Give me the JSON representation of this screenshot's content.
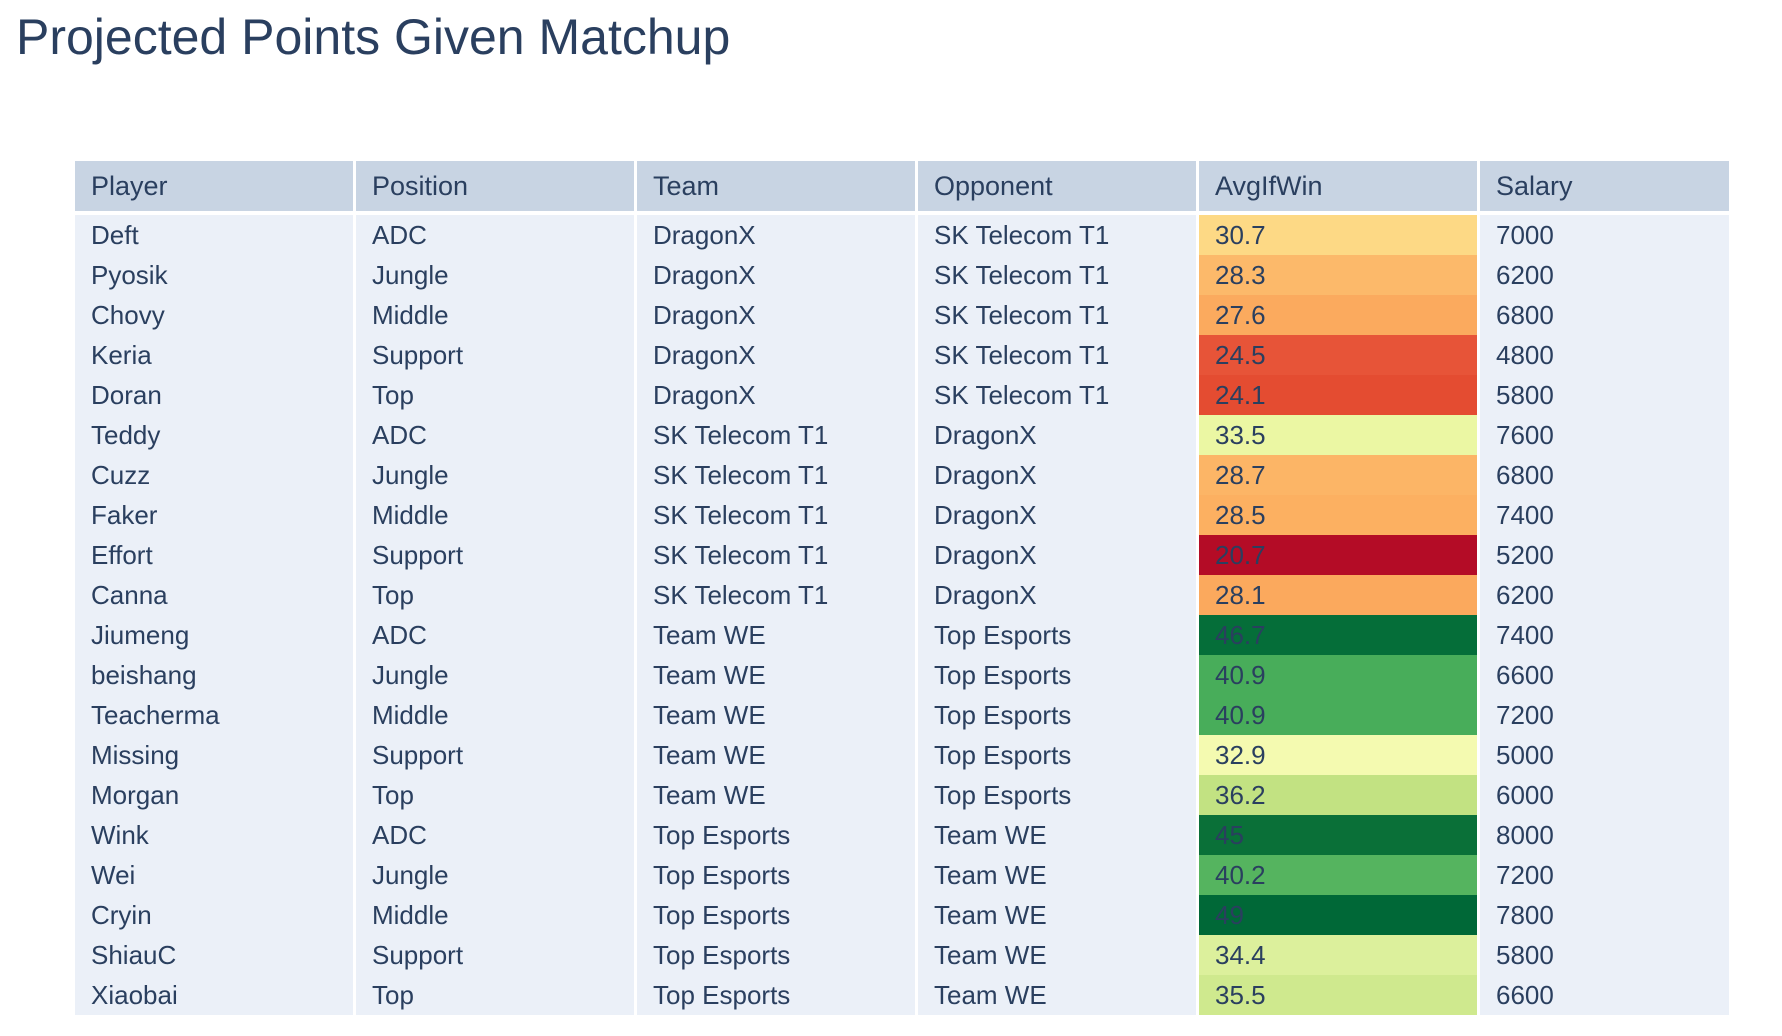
{
  "title": "Projected Points Given Matchup",
  "colors": {
    "page_bg": "#ffffff",
    "header_bg": "#c8d4e3",
    "row_bg": "#ebf0f8",
    "text": "#2a3f5f",
    "cell_gap": "#ffffff"
  },
  "chart_data": {
    "type": "table",
    "title": "Projected Points Given Matchup",
    "columns": [
      "Player",
      "Position",
      "Team",
      "Opponent",
      "AvgIfWin",
      "Salary"
    ],
    "heatmap_column": "AvgIfWin",
    "colorscale": "RdYlGn",
    "rows": [
      {
        "player": "Deft",
        "position": "ADC",
        "team": "DragonX",
        "opponent": "SK Telecom T1",
        "avg_if_win": "30.7",
        "salary": "7000",
        "avg_color": "#fdd985"
      },
      {
        "player": "Pyosik",
        "position": "Jungle",
        "team": "DragonX",
        "opponent": "SK Telecom T1",
        "avg_if_win": "28.3",
        "salary": "6200",
        "avg_color": "#fcb96a"
      },
      {
        "player": "Chovy",
        "position": "Middle",
        "team": "DragonX",
        "opponent": "SK Telecom T1",
        "avg_if_win": "27.6",
        "salary": "6800",
        "avg_color": "#fbaa5e"
      },
      {
        "player": "Keria",
        "position": "Support",
        "team": "DragonX",
        "opponent": "SK Telecom T1",
        "avg_if_win": "24.5",
        "salary": "4800",
        "avg_color": "#e75438"
      },
      {
        "player": "Doran",
        "position": "Top",
        "team": "DragonX",
        "opponent": "SK Telecom T1",
        "avg_if_win": "24.1",
        "salary": "5800",
        "avg_color": "#e44c31"
      },
      {
        "player": "Teddy",
        "position": "ADC",
        "team": "SK Telecom T1",
        "opponent": "DragonX",
        "avg_if_win": "33.5",
        "salary": "7600",
        "avg_color": "#ebf7a3"
      },
      {
        "player": "Cuzz",
        "position": "Jungle",
        "team": "SK Telecom T1",
        "opponent": "DragonX",
        "avg_if_win": "28.7",
        "salary": "6800",
        "avg_color": "#fcb566"
      },
      {
        "player": "Faker",
        "position": "Middle",
        "team": "SK Telecom T1",
        "opponent": "DragonX",
        "avg_if_win": "28.5",
        "salary": "7400",
        "avg_color": "#fcb061"
      },
      {
        "player": "Effort",
        "position": "Support",
        "team": "SK Telecom T1",
        "opponent": "DragonX",
        "avg_if_win": "20.7",
        "salary": "5200",
        "avg_color": "#b40c26"
      },
      {
        "player": "Canna",
        "position": "Top",
        "team": "SK Telecom T1",
        "opponent": "DragonX",
        "avg_if_win": "28.1",
        "salary": "6200",
        "avg_color": "#fba95d"
      },
      {
        "player": "Jiumeng",
        "position": "ADC",
        "team": "Team WE",
        "opponent": "Top Esports",
        "avg_if_win": "46.7",
        "salary": "7400",
        "avg_color": "#056e39"
      },
      {
        "player": "beishang",
        "position": "Jungle",
        "team": "Team WE",
        "opponent": "Top Esports",
        "avg_if_win": "40.9",
        "salary": "6600",
        "avg_color": "#48ad5a"
      },
      {
        "player": "Teacherma",
        "position": "Middle",
        "team": "Team WE",
        "opponent": "Top Esports",
        "avg_if_win": "40.9",
        "salary": "7200",
        "avg_color": "#48ad5a"
      },
      {
        "player": "Missing",
        "position": "Support",
        "team": "Team WE",
        "opponent": "Top Esports",
        "avg_if_win": "32.9",
        "salary": "5000",
        "avg_color": "#f4fab0"
      },
      {
        "player": "Morgan",
        "position": "Top",
        "team": "Team WE",
        "opponent": "Top Esports",
        "avg_if_win": "36.2",
        "salary": "6000",
        "avg_color": "#c2e282"
      },
      {
        "player": "Wink",
        "position": "ADC",
        "team": "Top Esports",
        "opponent": "Team WE",
        "avg_if_win": "45",
        "salary": "8000",
        "avg_color": "#0a7038"
      },
      {
        "player": "Wei",
        "position": "Jungle",
        "team": "Top Esports",
        "opponent": "Team WE",
        "avg_if_win": "40.2",
        "salary": "7200",
        "avg_color": "#55b45f"
      },
      {
        "player": "Cryin",
        "position": "Middle",
        "team": "Top Esports",
        "opponent": "Team WE",
        "avg_if_win": "49",
        "salary": "7800",
        "avg_color": "#006837"
      },
      {
        "player": "ShiauC",
        "position": "Support",
        "team": "Top Esports",
        "opponent": "Team WE",
        "avg_if_win": "34.4",
        "salary": "5800",
        "avg_color": "#dcf09c"
      },
      {
        "player": "Xiaobai",
        "position": "Top",
        "team": "Top Esports",
        "opponent": "Team WE",
        "avg_if_win": "35.5",
        "salary": "6600",
        "avg_color": "#cfe98e"
      }
    ]
  }
}
